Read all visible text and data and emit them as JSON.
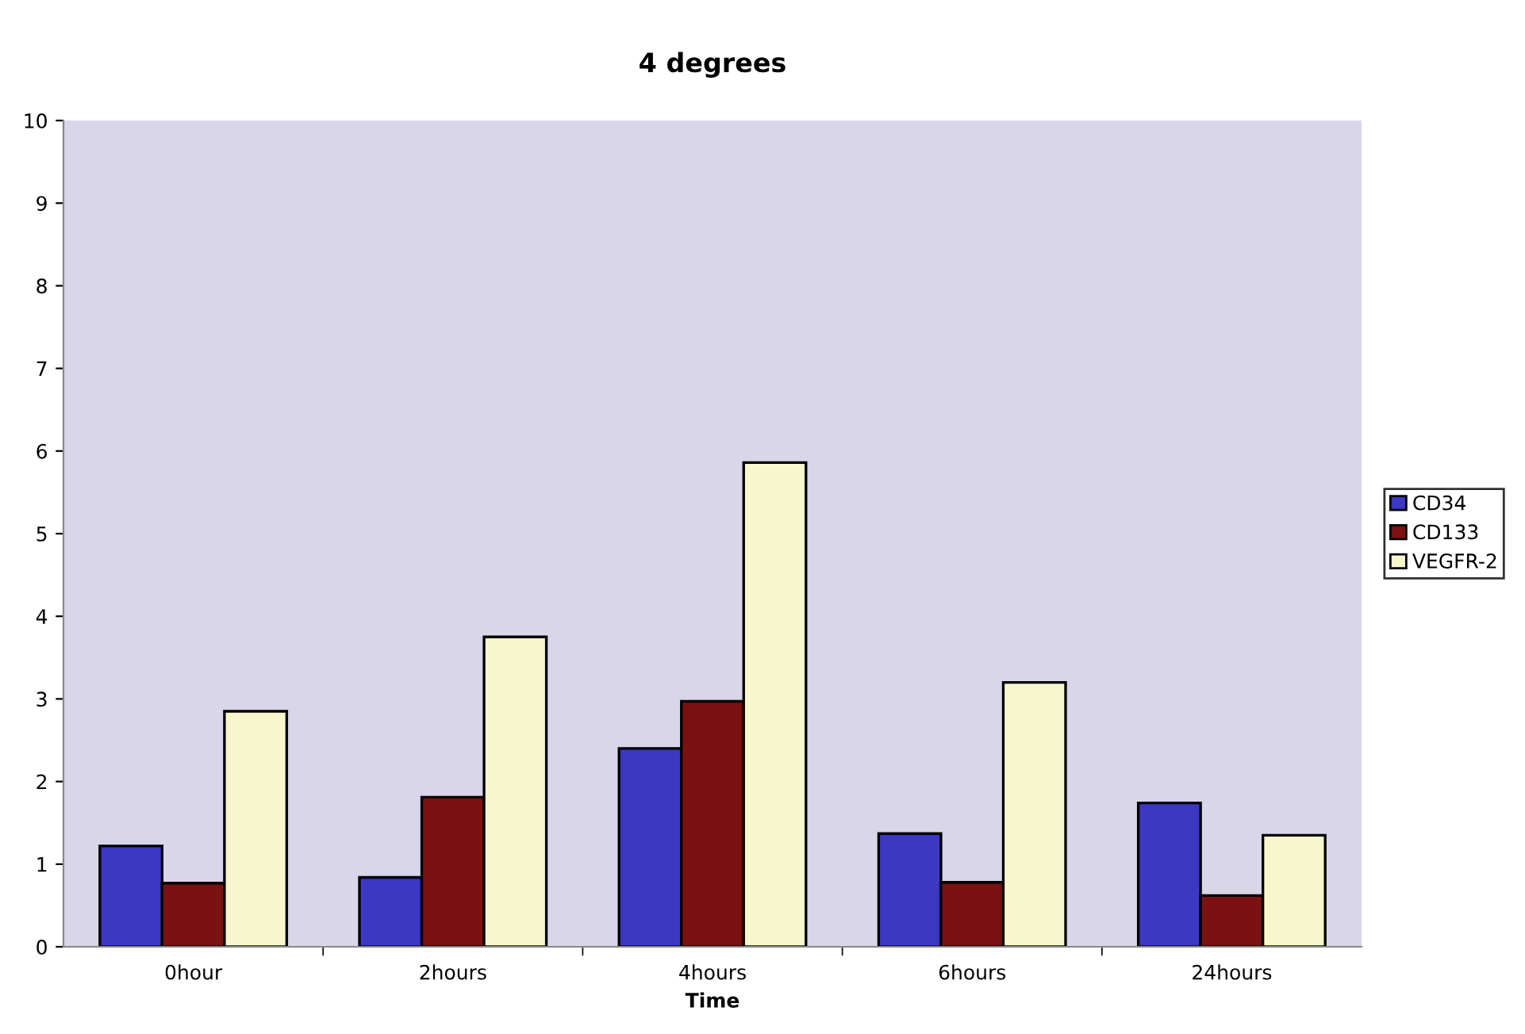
{
  "chart_data": {
    "type": "bar",
    "title": "4 degrees",
    "xlabel": "Time",
    "categories": [
      "0hour",
      "2hours",
      "4hours",
      "6hours",
      "24hours"
    ],
    "series": [
      {
        "name": "CD34",
        "color": "#3c38c4",
        "values": [
          1.22,
          0.84,
          2.4,
          1.37,
          1.74
        ]
      },
      {
        "name": "CD133",
        "color": "#7a1212",
        "values": [
          0.77,
          1.81,
          2.97,
          0.78,
          0.62
        ]
      },
      {
        "name": "VEGFR-2",
        "color": "#f8f6cc",
        "values": [
          2.85,
          3.75,
          5.86,
          3.2,
          1.35
        ]
      }
    ],
    "ylim": [
      0,
      10
    ],
    "yticks": [
      0,
      1,
      2,
      3,
      4,
      5,
      6,
      7,
      8,
      9,
      10
    ],
    "grid": false,
    "legend": "right"
  }
}
